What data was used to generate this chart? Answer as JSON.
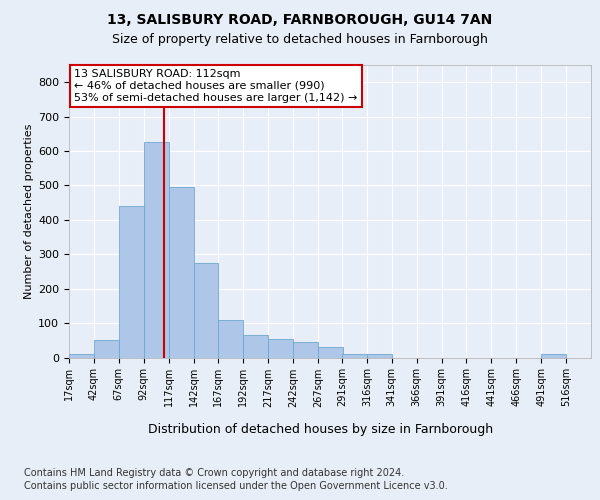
{
  "title1": "13, SALISBURY ROAD, FARNBOROUGH, GU14 7AN",
  "title2": "Size of property relative to detached houses in Farnborough",
  "xlabel": "Distribution of detached houses by size in Farnborough",
  "ylabel": "Number of detached properties",
  "annotation_line1": "13 SALISBURY ROAD: 112sqm",
  "annotation_line2": "← 46% of detached houses are smaller (990)",
  "annotation_line3": "53% of semi-detached houses are larger (1,142) →",
  "property_sqm": 112,
  "bin_labels": [
    "17sqm",
    "42sqm",
    "67sqm",
    "92sqm",
    "117sqm",
    "142sqm",
    "167sqm",
    "192sqm",
    "217sqm",
    "242sqm",
    "267sqm",
    "291sqm",
    "316sqm",
    "341sqm",
    "366sqm",
    "391sqm",
    "416sqm",
    "441sqm",
    "466sqm",
    "491sqm",
    "516sqm"
  ],
  "bin_starts": [
    17,
    42,
    67,
    92,
    117,
    142,
    167,
    192,
    217,
    242,
    267,
    291,
    316,
    341,
    366,
    391,
    416,
    441,
    466,
    491,
    516
  ],
  "bar_heights": [
    10,
    50,
    440,
    625,
    495,
    275,
    110,
    65,
    55,
    45,
    30,
    10,
    10,
    0,
    0,
    0,
    0,
    0,
    0,
    10,
    0
  ],
  "bar_color": "#aec6e8",
  "bar_edgecolor": "#6fa8d0",
  "vline_color": "#cc0000",
  "vline_x": 112,
  "annotation_box_edgecolor": "#cc0000",
  "ylim": [
    0,
    850
  ],
  "yticks": [
    0,
    100,
    200,
    300,
    400,
    500,
    600,
    700,
    800
  ],
  "footer_line1": "Contains HM Land Registry data © Crown copyright and database right 2024.",
  "footer_line2": "Contains public sector information licensed under the Open Government Licence v3.0.",
  "bg_color": "#e8eef8",
  "plot_bg_color": "#e8eef8",
  "grid_color": "#ffffff",
  "title1_fontsize": 10,
  "title2_fontsize": 9,
  "ylabel_fontsize": 8,
  "xlabel_fontsize": 9,
  "tick_fontsize": 8,
  "annot_fontsize": 8,
  "footer_fontsize": 7
}
